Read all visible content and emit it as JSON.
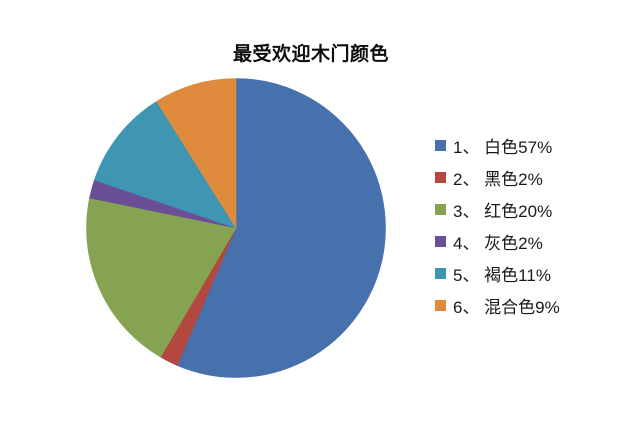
{
  "page": {
    "background_color": "#ffffff"
  },
  "chart_data": {
    "type": "pie",
    "title": "最受欢迎木门颜色",
    "categories": [
      "白色",
      "黑色",
      "红色",
      "灰色",
      "褐色",
      "混合色"
    ],
    "values": [
      57,
      2,
      20,
      2,
      11,
      9
    ],
    "unit": "%",
    "colors": [
      "#4671AC",
      "#B2483F",
      "#85A351",
      "#6A4F97",
      "#3F96B3",
      "#DF8A3D"
    ],
    "legend_position": "right",
    "legend_labels": [
      "1、 白色57%",
      "2、 黑色2%",
      "3、 红色20%",
      "4、 灰色2%",
      "5、 褐色11%",
      "6、 混合色9%"
    ],
    "start_angle_deg": 0,
    "direction": "clockwise",
    "grid": false
  }
}
